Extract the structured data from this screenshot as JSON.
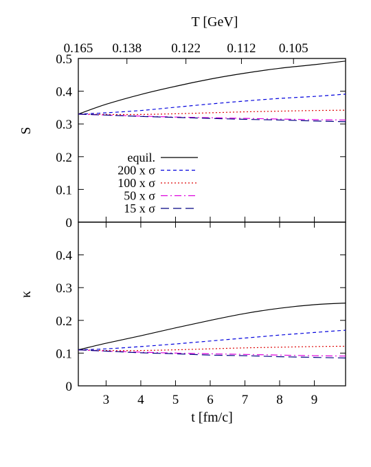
{
  "chart_data": [
    {
      "type": "line",
      "ylabel": "S",
      "top_axis_label": "T [GeV]",
      "top_ticks": [
        {
          "t": 2.2,
          "label": "0.165"
        },
        {
          "t": 3.6,
          "label": "0.138"
        },
        {
          "t": 5.3,
          "label": "0.122"
        },
        {
          "t": 6.9,
          "label": "0.112"
        },
        {
          "t": 8.4,
          "label": "0.105"
        }
      ],
      "xlim": [
        2.2,
        9.9
      ],
      "ylim": [
        0,
        0.5
      ],
      "yticks": [
        "0",
        "0.1",
        "0.2",
        "0.3",
        "0.4",
        "0.5"
      ],
      "legend_position": "center-left",
      "x": [
        2.2,
        3,
        4,
        5,
        6,
        7,
        8,
        9,
        9.9
      ],
      "series": [
        {
          "name": "equil.",
          "color": "#000000",
          "dash": "solid",
          "values": [
            0.33,
            0.36,
            0.39,
            0.415,
            0.437,
            0.455,
            0.47,
            0.481,
            0.492
          ]
        },
        {
          "name": "200 x σ",
          "color": "#0000dd",
          "dash": "short-dash",
          "values": [
            0.33,
            0.334,
            0.341,
            0.351,
            0.361,
            0.37,
            0.378,
            0.384,
            0.391
          ]
        },
        {
          "name": "100 x σ",
          "color": "#dd0000",
          "dash": "dotted",
          "values": [
            0.33,
            0.329,
            0.329,
            0.331,
            0.334,
            0.337,
            0.339,
            0.341,
            0.342
          ]
        },
        {
          "name": "50 x σ",
          "color": "#dd00dd",
          "dash": "dash-dot",
          "values": [
            0.33,
            0.327,
            0.324,
            0.321,
            0.319,
            0.317,
            0.315,
            0.313,
            0.312
          ]
        },
        {
          "name": "15 x σ",
          "color": "#000080",
          "dash": "long-dash",
          "values": [
            0.33,
            0.327,
            0.323,
            0.32,
            0.317,
            0.314,
            0.312,
            0.309,
            0.307
          ]
        }
      ]
    },
    {
      "type": "line",
      "xlabel": "t [fm/c]",
      "ylabel": "κ",
      "xlim": [
        2.2,
        9.9
      ],
      "xticks": [
        "3",
        "4",
        "5",
        "6",
        "7",
        "8",
        "9"
      ],
      "ylim": [
        0,
        0.5
      ],
      "yticks": [
        "0",
        "0.1",
        "0.2",
        "0.3",
        "0.4"
      ],
      "x": [
        2.2,
        3,
        4,
        5,
        6,
        7,
        8,
        9,
        9.9
      ],
      "series": [
        {
          "name": "equil.",
          "color": "#000000",
          "dash": "solid",
          "values": [
            0.11,
            0.13,
            0.153,
            0.177,
            0.2,
            0.221,
            0.237,
            0.248,
            0.253
          ]
        },
        {
          "name": "200 x σ",
          "color": "#0000dd",
          "dash": "short-dash",
          "values": [
            0.11,
            0.113,
            0.12,
            0.128,
            0.137,
            0.146,
            0.155,
            0.163,
            0.17
          ]
        },
        {
          "name": "100 x σ",
          "color": "#dd0000",
          "dash": "dotted",
          "values": [
            0.11,
            0.108,
            0.108,
            0.11,
            0.113,
            0.116,
            0.118,
            0.12,
            0.121
          ]
        },
        {
          "name": "50 x σ",
          "color": "#dd00dd",
          "dash": "dash-dot",
          "values": [
            0.11,
            0.106,
            0.103,
            0.1,
            0.098,
            0.096,
            0.094,
            0.092,
            0.091
          ]
        },
        {
          "name": "15 x σ",
          "color": "#000080",
          "dash": "long-dash",
          "values": [
            0.11,
            0.106,
            0.101,
            0.098,
            0.094,
            0.092,
            0.089,
            0.087,
            0.085
          ]
        }
      ]
    }
  ]
}
